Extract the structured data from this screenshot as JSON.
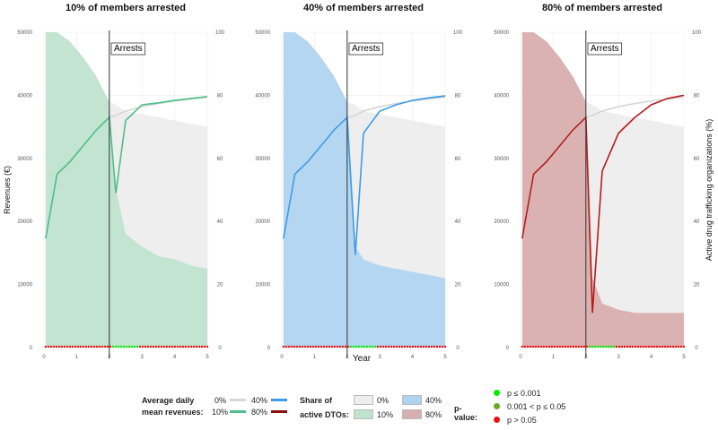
{
  "chart_data": [
    {
      "type": "area",
      "title": "10% of members arrested",
      "color": "#4dbf88",
      "fill": "#bfe3cf",
      "annotation": "Arrests",
      "arrest_year": 2,
      "x": [
        0.05,
        0.4,
        0.8,
        1.2,
        1.6,
        2.0,
        2.2,
        2.5,
        3,
        3.5,
        4,
        4.5,
        5
      ],
      "active_share": [
        100,
        100,
        97,
        92,
        86,
        78,
        50,
        36,
        32,
        29,
        28,
        26,
        25
      ],
      "baseline_share": [
        100,
        100,
        97,
        92,
        86,
        78,
        77,
        75,
        74,
        73,
        72,
        71,
        70
      ],
      "revenue": [
        17300,
        27500,
        29500,
        32000,
        34500,
        36500,
        24500,
        36000,
        38500,
        38800,
        39200,
        39500,
        39800
      ],
      "baseline_revenue": [
        17300,
        27500,
        29500,
        32000,
        34500,
        36500,
        36800,
        37500,
        38200,
        38700,
        39100,
        39400,
        39700
      ]
    },
    {
      "type": "area",
      "title": "40% of members arrested",
      "color": "#3d9be8",
      "fill": "#b0d4f0",
      "annotation": "Arrests",
      "arrest_year": 2,
      "x": [
        0.05,
        0.4,
        0.8,
        1.2,
        1.6,
        2.0,
        2.25,
        2.5,
        3,
        3.5,
        4,
        4.5,
        5
      ],
      "active_share": [
        100,
        100,
        97,
        92,
        86,
        78,
        32,
        28,
        26,
        25,
        24,
        23,
        22
      ],
      "baseline_share": [
        100,
        100,
        97,
        92,
        86,
        78,
        77,
        75,
        74,
        73,
        72,
        71,
        70
      ],
      "revenue": [
        17300,
        27500,
        29500,
        32000,
        34500,
        36500,
        14700,
        34000,
        37500,
        38500,
        39200,
        39600,
        39900
      ],
      "baseline_revenue": [
        17300,
        27500,
        29500,
        32000,
        34500,
        36500,
        36800,
        37500,
        38200,
        38700,
        39100,
        39400,
        39700
      ]
    },
    {
      "type": "area",
      "title": "80% of members arrested",
      "color": "#b51d1d",
      "fill": "#d9aeae",
      "annotation": "Arrests",
      "arrest_year": 2,
      "x": [
        0.05,
        0.4,
        0.8,
        1.2,
        1.6,
        2.0,
        2.2,
        2.5,
        3,
        3.5,
        4,
        4.5,
        5
      ],
      "active_share": [
        100,
        100,
        97,
        92,
        86,
        78,
        22,
        14,
        12,
        11,
        11,
        11,
        11
      ],
      "baseline_share": [
        100,
        100,
        97,
        92,
        86,
        78,
        77,
        75,
        74,
        73,
        72,
        71,
        70
      ],
      "revenue": [
        17300,
        27500,
        29500,
        32000,
        34500,
        36500,
        5500,
        28000,
        34000,
        36500,
        38500,
        39500,
        40000
      ],
      "baseline_revenue": [
        17300,
        27500,
        29500,
        32000,
        34500,
        36500,
        36800,
        37500,
        38200,
        38700,
        39100,
        39400,
        39700
      ]
    }
  ],
  "axes": {
    "xlabel": "Year",
    "ylabel_left": "Revenues (€)",
    "ylabel_right": "Active drug trafficking organizations (%)",
    "x_ticks": [
      "0",
      "1",
      "2",
      "3",
      "4",
      "5"
    ],
    "y_left_ticks": [
      "0",
      "10000",
      "20000",
      "30000",
      "40000",
      "50000"
    ],
    "y_right_ticks": [
      "0",
      "20",
      "40",
      "60",
      "80",
      "100"
    ],
    "xlim": [
      0,
      5
    ],
    "ylim_left": [
      0,
      50000
    ],
    "ylim_right": [
      0,
      100
    ]
  },
  "colors": {
    "baseline_line": "#d6d6d6",
    "baseline_fill": "#eeeeee",
    "p_low": "#00ee00",
    "p_mid": "#66aa22",
    "p_high": "#ee1111"
  },
  "legend": {
    "revenue_title_1": "Average daily",
    "revenue_title_2": "mean revenues:",
    "share_title_1": "Share of",
    "share_title_2": "active DTOs:",
    "pvalue_title": "p-value:",
    "level_0": "0%",
    "level_10": "10%",
    "level_40": "40%",
    "level_80": "80%",
    "p1": "p ≤ 0.001",
    "p2": "0.001 < p ≤ 0.05",
    "p3": "p > 0.05"
  }
}
